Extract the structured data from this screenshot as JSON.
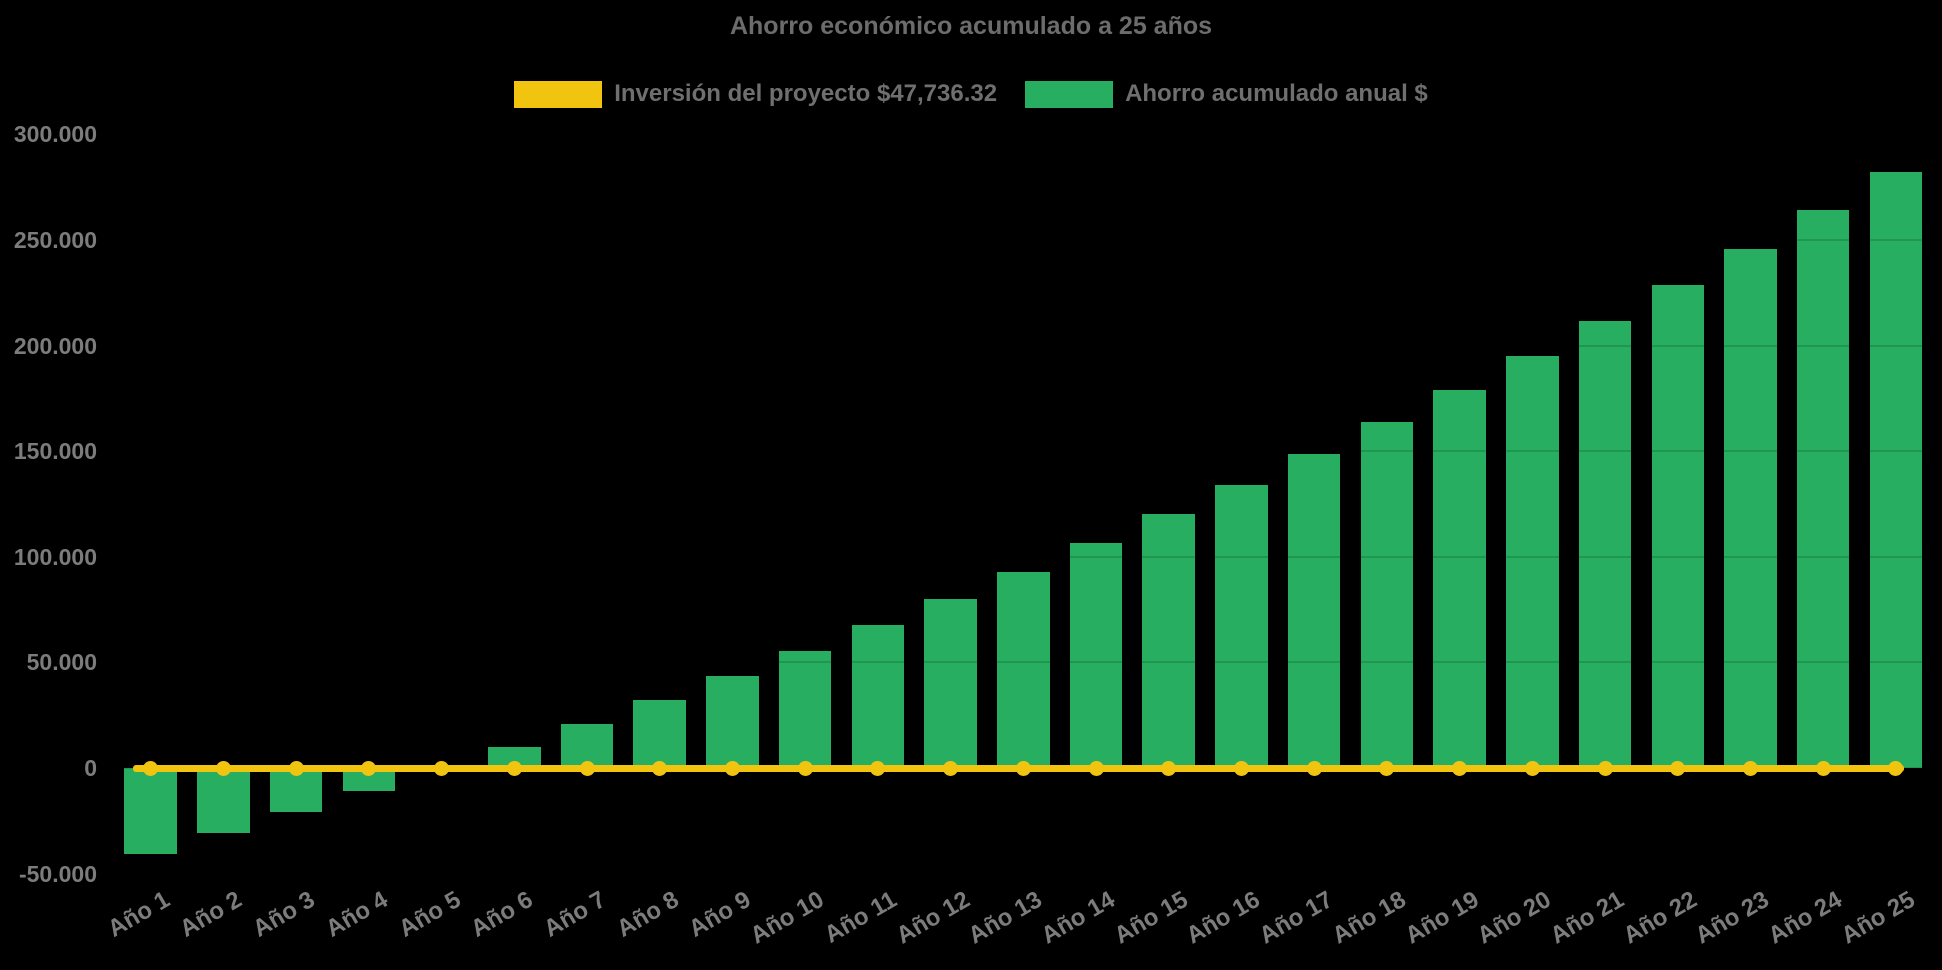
{
  "page": {
    "background": "#000000"
  },
  "chart_data": {
    "type": "bar",
    "title": "Ahorro económico acumulado a 25 años",
    "title_color": "#6C6C6C",
    "categories": [
      "Año 1",
      "Año 2",
      "Año 3",
      "Año 4",
      "Año 5",
      "Año 6",
      "Año 7",
      "Año 8",
      "Año 9",
      "Año 10",
      "Año 11",
      "Año 12",
      "Año 13",
      "Año 14",
      "Año 15",
      "Año 16",
      "Año 17",
      "Año 18",
      "Año 19",
      "Año 20",
      "Año 21",
      "Año 22",
      "Año 23",
      "Año 24",
      "Año 25"
    ],
    "series": [
      {
        "name": "Inversión del proyecto $47,736.32",
        "type": "line",
        "color": "#F1C40F",
        "marker": "circle",
        "values": [
          0,
          0,
          0,
          0,
          0,
          0,
          0,
          0,
          0,
          0,
          0,
          0,
          0,
          0,
          0,
          0,
          0,
          0,
          0,
          0,
          0,
          0,
          0,
          0,
          0
        ]
      },
      {
        "name": "Ahorro acumulado anual $",
        "type": "bar",
        "color": "#27AE60",
        "values": [
          -40600,
          -30900,
          -21000,
          -10900,
          -800,
          9800,
          21000,
          32200,
          43700,
          55200,
          67900,
          80000,
          92800,
          106500,
          120300,
          133800,
          148700,
          163800,
          179100,
          194900,
          211800,
          228500,
          245700,
          264000,
          282000
        ]
      }
    ],
    "xlabel": "",
    "ylabel": "",
    "ylim": [
      -50000,
      300000
    ],
    "yticks": [
      300000,
      250000,
      200000,
      150000,
      100000,
      50000,
      0,
      -50000
    ],
    "ytick_labels": [
      "300.000",
      "250.000",
      "200.000",
      "150.000",
      "100.000",
      "50.000",
      "0",
      "-50.000"
    ],
    "axis_text_color": "#7C7C7C",
    "legend_position": "top",
    "grid": "none visible (black background)",
    "background": "#000000"
  }
}
